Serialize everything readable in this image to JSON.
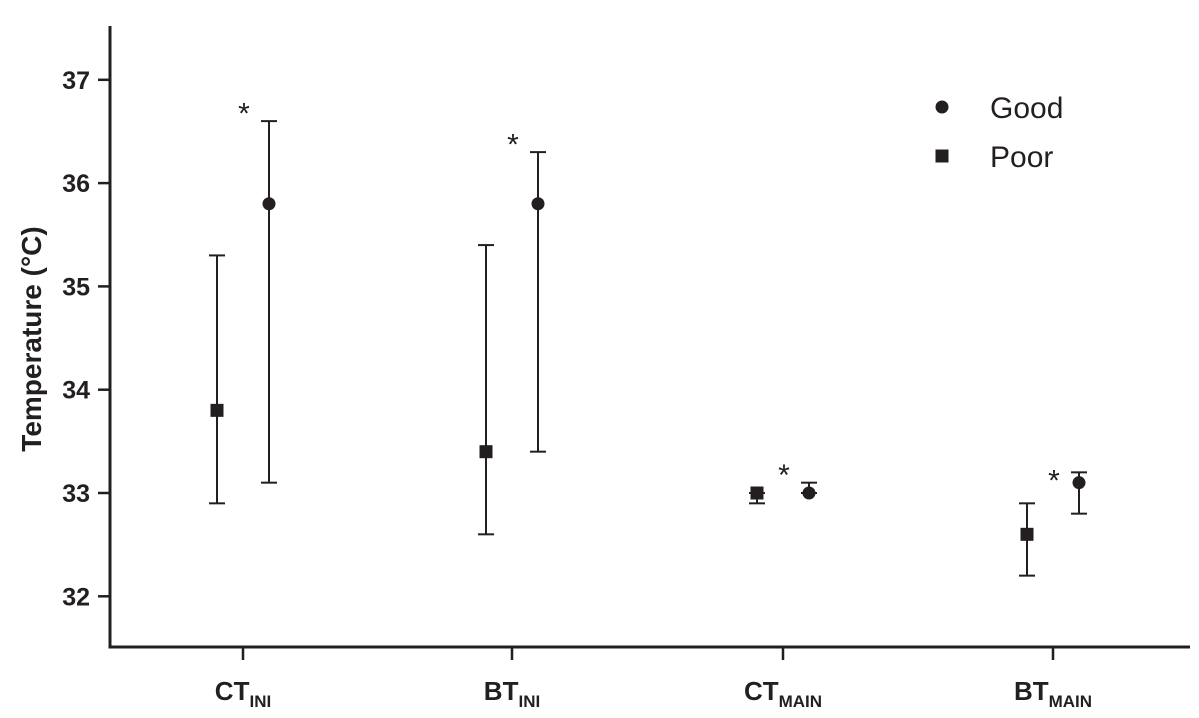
{
  "chart_data": {
    "type": "scatter",
    "ylabel": "Temperature (°C)",
    "ylim": [
      31.5,
      37.5
    ],
    "yticks": [
      32,
      33,
      34,
      35,
      36,
      37
    ],
    "categories": [
      {
        "main": "CT",
        "sub": "INI"
      },
      {
        "main": "BT",
        "sub": "INI"
      },
      {
        "main": "CT",
        "sub": "MAIN"
      },
      {
        "main": "BT",
        "sub": "MAIN"
      }
    ],
    "series": [
      {
        "name": "Poor",
        "marker": "square",
        "values": [
          33.8,
          33.4,
          33.0,
          32.6
        ],
        "err_low": [
          32.9,
          32.6,
          32.9,
          32.2
        ],
        "err_high": [
          35.3,
          35.4,
          33.0,
          32.9
        ]
      },
      {
        "name": "Good",
        "marker": "circle",
        "values": [
          35.8,
          35.8,
          33.0,
          33.1
        ],
        "err_low": [
          33.1,
          33.4,
          33.0,
          32.8
        ],
        "err_high": [
          36.6,
          36.3,
          33.1,
          33.2
        ]
      }
    ],
    "annotations": [
      {
        "text": "*",
        "category": 0,
        "y": 36.75
      },
      {
        "text": "*",
        "category": 1,
        "y": 36.45
      },
      {
        "text": "*",
        "category": 2,
        "y": 33.25
      },
      {
        "text": "*",
        "category": 3,
        "y": 33.2
      }
    ],
    "legend": {
      "placement": "top-right",
      "items": [
        {
          "name": "Good",
          "marker": "circle"
        },
        {
          "name": "Poor",
          "marker": "square"
        }
      ]
    },
    "colors": {
      "ink": "#231f20"
    }
  }
}
